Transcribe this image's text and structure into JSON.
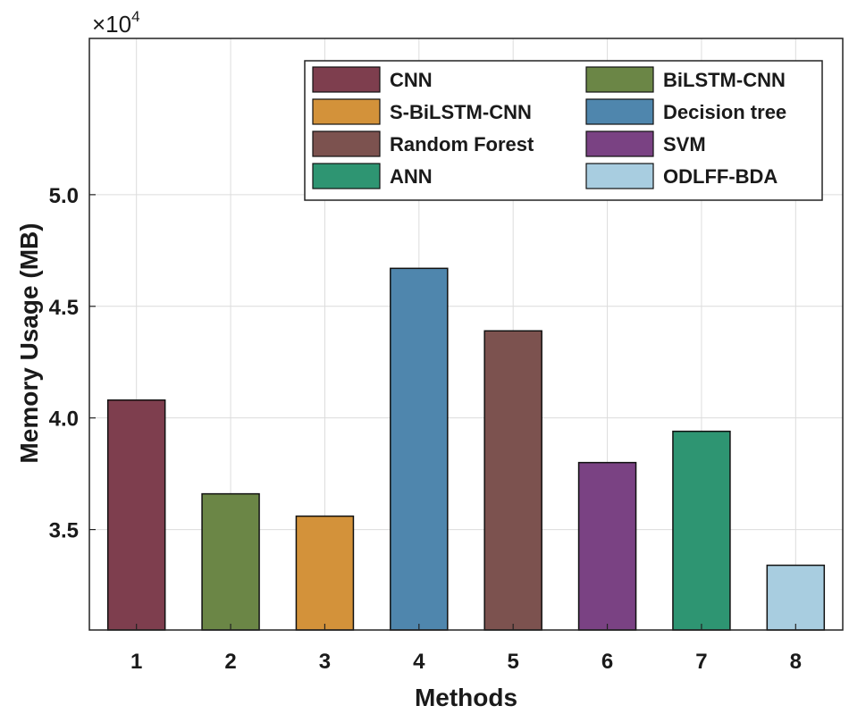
{
  "chart_data": {
    "type": "bar",
    "title": "",
    "xlabel": "Methods",
    "ylabel": "Memory Usage (MB)",
    "y_exponent_label": "×10",
    "y_exponent_power": "4",
    "categories": [
      "1",
      "2",
      "3",
      "4",
      "5",
      "6",
      "7",
      "8"
    ],
    "values": [
      40800,
      36600,
      35600,
      46700,
      43900,
      38000,
      39400,
      33400
    ],
    "series_names": [
      "CNN",
      "BiLSTM-CNN",
      "S-BiLSTM-CNN",
      "Decision tree",
      "Random Forest",
      "SVM",
      "ANN",
      "ODLFF-BDA"
    ],
    "colors": [
      "#7e3e4e",
      "#6b8646",
      "#d3923a",
      "#4f86ad",
      "#7c524f",
      "#7a4283",
      "#2e9572",
      "#a8cde0"
    ],
    "ylim": [
      30500,
      57000
    ],
    "yticks": [
      35000,
      40000,
      45000,
      50000
    ],
    "ytick_labels": [
      "3.5",
      "4.0",
      "4.5",
      "5.0"
    ],
    "grid": true,
    "legend": {
      "placement": "top-right",
      "columns": 2,
      "entries": [
        {
          "label": "CNN",
          "color": "#7e3e4e"
        },
        {
          "label": "BiLSTM-CNN",
          "color": "#6b8646"
        },
        {
          "label": "S-BiLSTM-CNN",
          "color": "#d3923a"
        },
        {
          "label": "Decision tree",
          "color": "#4f86ad"
        },
        {
          "label": "Random Forest",
          "color": "#7c524f"
        },
        {
          "label": "SVM",
          "color": "#7a4283"
        },
        {
          "label": "ANN",
          "color": "#2e9572"
        },
        {
          "label": "ODLFF-BDA",
          "color": "#a8cde0"
        }
      ]
    }
  }
}
